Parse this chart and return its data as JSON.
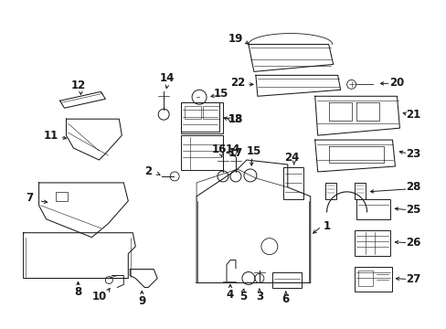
{
  "bg_color": "#ffffff",
  "line_color": "#1a1a1a",
  "fig_width": 4.89,
  "fig_height": 3.6,
  "dpi": 100,
  "label_fs": 8.5,
  "lw": 0.75
}
